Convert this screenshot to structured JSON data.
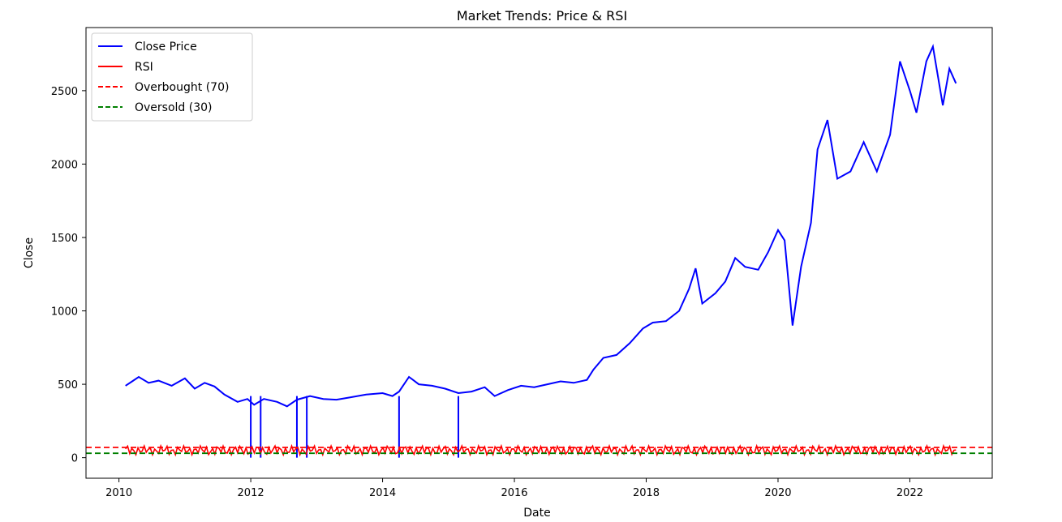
{
  "chart_data": {
    "type": "line",
    "title": "Market Trends: Price & RSI",
    "xlabel": "Date",
    "ylabel": "Close",
    "xlim": [
      2009.5,
      2023.25
    ],
    "ylim": [
      -140,
      2930
    ],
    "x_ticks": [
      2010,
      2012,
      2014,
      2016,
      2018,
      2020,
      2022
    ],
    "x_tick_labels": [
      "2010",
      "2012",
      "2014",
      "2016",
      "2018",
      "2020",
      "2022"
    ],
    "y_ticks": [
      0,
      500,
      1000,
      1500,
      2000,
      2500
    ],
    "y_tick_labels": [
      "0",
      "500",
      "1000",
      "1500",
      "2000",
      "2500"
    ],
    "grid": false,
    "legend_position": "top-left",
    "series": [
      {
        "name": "Close Price",
        "color": "#0000ff",
        "style": "solid",
        "points": [
          [
            2010.1,
            490
          ],
          [
            2010.2,
            520
          ],
          [
            2010.3,
            550
          ],
          [
            2010.45,
            510
          ],
          [
            2010.6,
            525
          ],
          [
            2010.8,
            490
          ],
          [
            2011.0,
            540
          ],
          [
            2011.15,
            470
          ],
          [
            2011.3,
            510
          ],
          [
            2011.45,
            485
          ],
          [
            2011.6,
            430
          ],
          [
            2011.8,
            380
          ],
          [
            2011.95,
            400
          ],
          [
            2012.05,
            360
          ],
          [
            2012.2,
            400
          ],
          [
            2012.4,
            380
          ],
          [
            2012.55,
            350
          ],
          [
            2012.7,
            395
          ],
          [
            2012.9,
            420
          ],
          [
            2013.1,
            400
          ],
          [
            2013.3,
            395
          ],
          [
            2013.5,
            410
          ],
          [
            2013.75,
            430
          ],
          [
            2014.0,
            440
          ],
          [
            2014.15,
            420
          ],
          [
            2014.25,
            450
          ],
          [
            2014.4,
            550
          ],
          [
            2014.55,
            500
          ],
          [
            2014.75,
            490
          ],
          [
            2014.95,
            470
          ],
          [
            2015.15,
            440
          ],
          [
            2015.35,
            450
          ],
          [
            2015.55,
            480
          ],
          [
            2015.7,
            420
          ],
          [
            2015.9,
            460
          ],
          [
            2016.1,
            490
          ],
          [
            2016.3,
            480
          ],
          [
            2016.5,
            500
          ],
          [
            2016.7,
            520
          ],
          [
            2016.9,
            510
          ],
          [
            2017.1,
            530
          ],
          [
            2017.2,
            600
          ],
          [
            2017.35,
            680
          ],
          [
            2017.55,
            700
          ],
          [
            2017.75,
            780
          ],
          [
            2017.95,
            880
          ],
          [
            2018.1,
            920
          ],
          [
            2018.3,
            930
          ],
          [
            2018.5,
            1000
          ],
          [
            2018.65,
            1150
          ],
          [
            2018.75,
            1290
          ],
          [
            2018.85,
            1050
          ],
          [
            2019.05,
            1120
          ],
          [
            2019.2,
            1200
          ],
          [
            2019.35,
            1360
          ],
          [
            2019.5,
            1300
          ],
          [
            2019.7,
            1280
          ],
          [
            2019.85,
            1400
          ],
          [
            2020.0,
            1550
          ],
          [
            2020.1,
            1480
          ],
          [
            2020.22,
            900
          ],
          [
            2020.35,
            1300
          ],
          [
            2020.5,
            1600
          ],
          [
            2020.6,
            2100
          ],
          [
            2020.75,
            2300
          ],
          [
            2020.9,
            1900
          ],
          [
            2021.1,
            1950
          ],
          [
            2021.3,
            2150
          ],
          [
            2021.5,
            1950
          ],
          [
            2021.7,
            2200
          ],
          [
            2021.85,
            2700
          ],
          [
            2022.0,
            2500
          ],
          [
            2022.1,
            2350
          ],
          [
            2022.25,
            2700
          ],
          [
            2022.35,
            2800
          ],
          [
            2022.5,
            2400
          ],
          [
            2022.6,
            2650
          ],
          [
            2022.7,
            2550
          ]
        ],
        "dropouts": [
          2012.0,
          2012.15,
          2012.7,
          2012.85,
          2014.25,
          2015.15
        ]
      },
      {
        "name": "RSI",
        "color": "#ff0000",
        "style": "solid",
        "x_range": [
          2010.1,
          2022.7
        ],
        "oscillation": [
          20,
          80
        ]
      },
      {
        "name": "Overbought (70)",
        "color": "#ff0000",
        "style": "dashed",
        "y": 70
      },
      {
        "name": "Oversold (30)",
        "color": "#008000",
        "style": "dashed",
        "y": 30
      }
    ]
  }
}
